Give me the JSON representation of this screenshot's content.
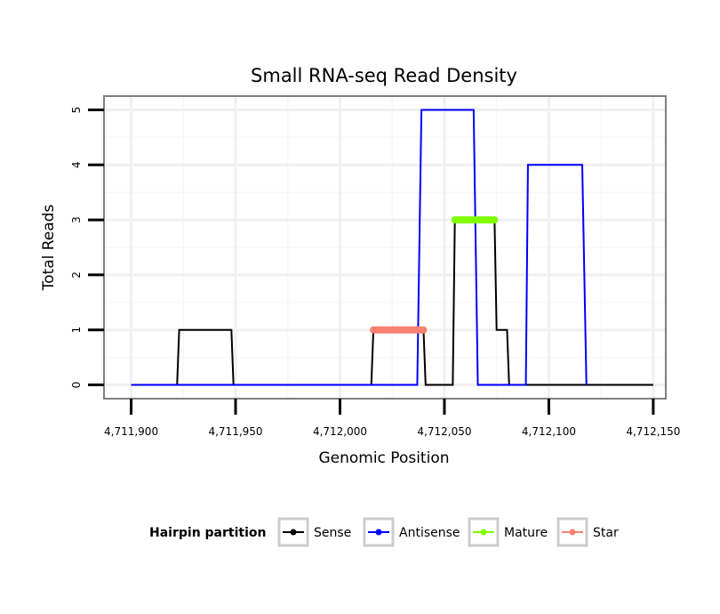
{
  "chart_data": {
    "type": "line",
    "title": "Small RNA-seq Read Density",
    "xlabel": "Genomic Position",
    "ylabel": "Total Reads",
    "xlim": [
      4711887,
      4712156
    ],
    "ylim": [
      -0.25,
      5.25
    ],
    "x_ticks": [
      4711900,
      4711950,
      4712000,
      4712050,
      4712100,
      4712150
    ],
    "x_tick_labels": [
      "4,711,900",
      "4,711,950",
      "4,712,000",
      "4,712,050",
      "4,712,100",
      "4,712,150"
    ],
    "y_ticks": [
      0,
      1,
      2,
      3,
      4,
      5
    ],
    "y_tick_labels": [
      "0",
      "1",
      "2",
      "3",
      "4",
      "5"
    ],
    "grid": true,
    "series": [
      {
        "name": "Sense",
        "color": "#000000",
        "points": [
          [
            4711900,
            0
          ],
          [
            4711922,
            0
          ],
          [
            4711923,
            1
          ],
          [
            4711948,
            1
          ],
          [
            4711949,
            0
          ],
          [
            4712015,
            0
          ],
          [
            4712016,
            1
          ],
          [
            4712040,
            1
          ],
          [
            4712041,
            0
          ],
          [
            4712054,
            0
          ],
          [
            4712055,
            3
          ],
          [
            4712074,
            3
          ],
          [
            4712075,
            1
          ],
          [
            4712080,
            1
          ],
          [
            4712081,
            0
          ],
          [
            4712150,
            0
          ]
        ]
      },
      {
        "name": "Antisense",
        "color": "#0000ff",
        "points": [
          [
            4711900,
            0
          ],
          [
            4712037,
            0
          ],
          [
            4712039,
            5
          ],
          [
            4712064,
            5
          ],
          [
            4712066,
            0
          ],
          [
            4712089,
            0
          ],
          [
            4712090,
            4
          ],
          [
            4712116,
            4
          ],
          [
            4712118,
            0
          ]
        ]
      },
      {
        "name": "Mature",
        "color": "#7fff00",
        "points": [
          [
            4712055,
            3
          ],
          [
            4712074,
            3
          ]
        ]
      },
      {
        "name": "Star",
        "color": "#fa8072",
        "points": [
          [
            4712016,
            1
          ],
          [
            4712040,
            1
          ]
        ]
      }
    ],
    "legend": {
      "title": "Hairpin partition",
      "position": "bottom",
      "entries": [
        "Sense",
        "Antisense",
        "Mature",
        "Star"
      ]
    }
  }
}
